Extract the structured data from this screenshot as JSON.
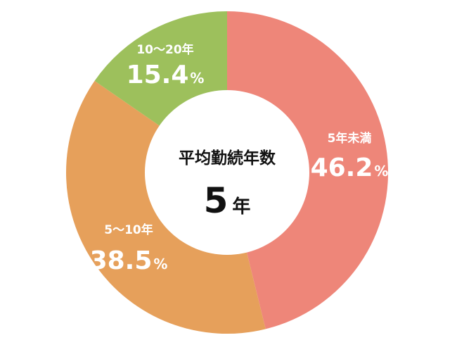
{
  "chart_data": {
    "type": "pie",
    "donut": true,
    "categories": [
      "5年未満",
      "5～10年",
      "10～20年"
    ],
    "values": [
      46.2,
      38.5,
      15.4
    ],
    "value_suffix": "%",
    "colors": [
      "#ee8679",
      "#e6a05b",
      "#9dc05c"
    ],
    "center": {
      "title": "平均勤続年数",
      "value": "5",
      "unit": "年"
    },
    "label_color": "#ffffff",
    "center_text_color": "#111111"
  }
}
